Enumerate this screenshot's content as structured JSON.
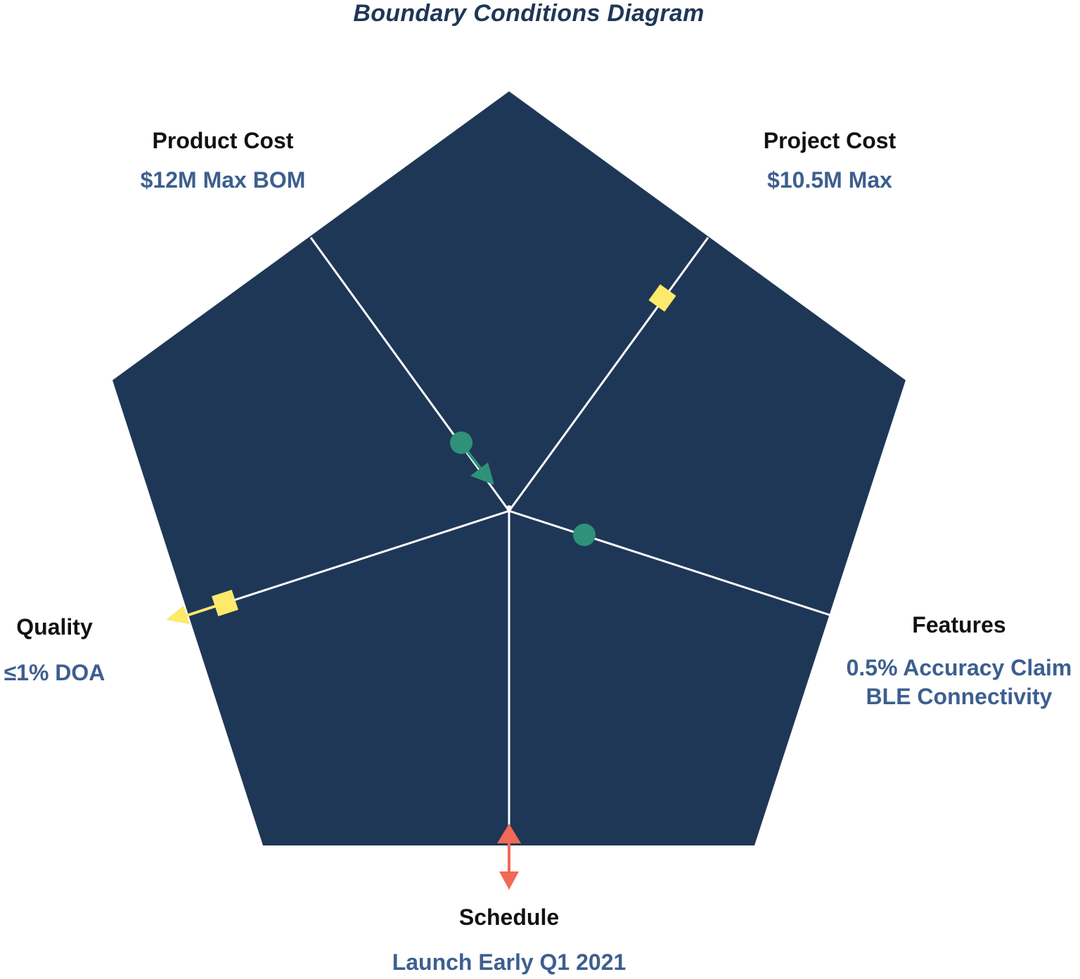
{
  "title": "Boundary Conditions Diagram",
  "colors": {
    "pentagon_fill": "#1f3757",
    "axis_line": "#ffffff",
    "green_marker": "#2f9178",
    "yellow_marker": "#fde96a",
    "red_marker": "#f26956",
    "label_text": "#111111",
    "constraint_text": "#3d5f8f"
  },
  "axes": {
    "product_cost": {
      "name": "Product Cost",
      "constraint": "$12M Max BOM"
    },
    "project_cost": {
      "name": "Project Cost",
      "constraint": "$10.5M Max"
    },
    "features": {
      "name": "Features",
      "constraint_lines": [
        "0.5% Accuracy Claim",
        "BLE Connectivity"
      ]
    },
    "schedule": {
      "name": "Schedule",
      "constraint": "Launch Early Q1 2021"
    },
    "quality": {
      "name": "Quality",
      "constraint": "≤1% DOA"
    }
  },
  "markers": [
    {
      "axis": "product_cost",
      "shape": "circle",
      "color": "green",
      "direction": "toward-center"
    },
    {
      "axis": "project_cost",
      "shape": "square",
      "color": "yellow"
    },
    {
      "axis": "features",
      "shape": "circle",
      "color": "green"
    },
    {
      "axis": "quality",
      "shape": "square",
      "color": "yellow",
      "direction": "outward"
    },
    {
      "axis": "schedule",
      "shape": "double-arrow",
      "color": "red"
    }
  ]
}
